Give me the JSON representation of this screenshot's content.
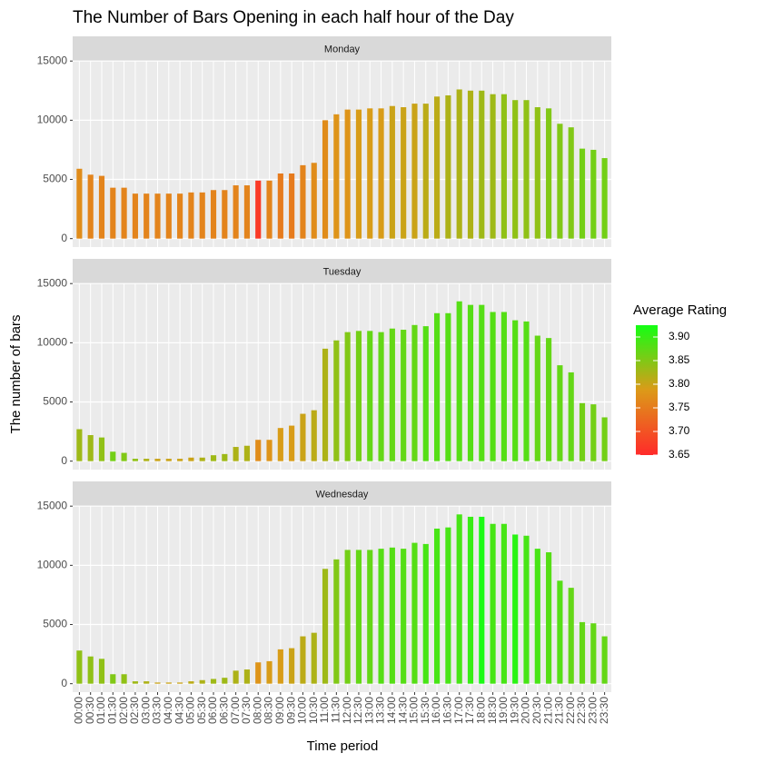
{
  "chart_data": {
    "type": "bar",
    "title": "The Number of Bars Opening in each half hour of the Day",
    "xlabel": "Time period",
    "ylabel": "The number of bars",
    "categories": [
      "00:00",
      "00:30",
      "01:00",
      "01:30",
      "02:00",
      "02:30",
      "03:00",
      "03:30",
      "04:00",
      "04:30",
      "05:00",
      "05:30",
      "06:00",
      "06:30",
      "07:00",
      "07:30",
      "08:00",
      "08:30",
      "09:00",
      "09:30",
      "10:00",
      "10:30",
      "11:00",
      "11:30",
      "12:00",
      "12:30",
      "13:00",
      "13:30",
      "14:00",
      "14:30",
      "15:00",
      "15:30",
      "16:00",
      "16:30",
      "17:00",
      "17:30",
      "18:00",
      "18:30",
      "19:00",
      "19:30",
      "20:00",
      "20:30",
      "21:00",
      "21:30",
      "22:00",
      "22:30",
      "23:00",
      "23:30"
    ],
    "facets": [
      {
        "name": "Monday",
        "values": [
          5900,
          5400,
          5300,
          4300,
          4300,
          3800,
          3800,
          3800,
          3800,
          3800,
          3900,
          3900,
          4100,
          4100,
          4500,
          4500,
          4900,
          4900,
          5500,
          5500,
          6200,
          6400,
          10000,
          10500,
          10900,
          10900,
          11000,
          11000,
          11200,
          11100,
          11400,
          11400,
          12000,
          12100,
          12600,
          12500,
          12500,
          12200,
          12200,
          11700,
          11700,
          11100,
          11000,
          9700,
          9400,
          7600,
          7500,
          6800
        ],
        "ratings": [
          3.77,
          3.76,
          3.76,
          3.76,
          3.76,
          3.76,
          3.76,
          3.76,
          3.76,
          3.76,
          3.76,
          3.76,
          3.76,
          3.76,
          3.76,
          3.76,
          3.67,
          3.76,
          3.75,
          3.75,
          3.76,
          3.77,
          3.77,
          3.78,
          3.78,
          3.79,
          3.79,
          3.79,
          3.8,
          3.8,
          3.8,
          3.81,
          3.81,
          3.82,
          3.82,
          3.82,
          3.83,
          3.83,
          3.84,
          3.84,
          3.84,
          3.84,
          3.85,
          3.85,
          3.85,
          3.86,
          3.86,
          3.86
        ]
      },
      {
        "name": "Tuesday",
        "values": [
          2700,
          2200,
          2000,
          800,
          700,
          200,
          200,
          200,
          200,
          200,
          300,
          300,
          500,
          600,
          1200,
          1300,
          1800,
          1800,
          2800,
          3000,
          4000,
          4300,
          9500,
          10200,
          10900,
          11000,
          11000,
          10900,
          11200,
          11100,
          11500,
          11400,
          12500,
          12500,
          13500,
          13200,
          13200,
          12600,
          12600,
          11900,
          11800,
          10600,
          10400,
          8100,
          7500,
          4900,
          4800,
          3700
        ],
        "ratings": [
          3.83,
          3.83,
          3.84,
          3.86,
          3.85,
          3.84,
          3.82,
          3.8,
          3.8,
          3.8,
          3.8,
          3.82,
          3.83,
          3.83,
          3.82,
          3.82,
          3.77,
          3.78,
          3.79,
          3.79,
          3.8,
          3.81,
          3.82,
          3.84,
          3.85,
          3.86,
          3.87,
          3.87,
          3.87,
          3.87,
          3.87,
          3.88,
          3.88,
          3.88,
          3.88,
          3.88,
          3.88,
          3.88,
          3.88,
          3.88,
          3.88,
          3.87,
          3.87,
          3.87,
          3.87,
          3.86,
          3.86,
          3.86
        ]
      },
      {
        "name": "Wednesday",
        "values": [
          2800,
          2300,
          2100,
          800,
          800,
          200,
          200,
          100,
          100,
          100,
          200,
          300,
          400,
          500,
          1100,
          1200,
          1800,
          1900,
          2900,
          3000,
          4000,
          4300,
          9700,
          10500,
          11300,
          11300,
          11300,
          11400,
          11500,
          11400,
          11900,
          11800,
          13100,
          13200,
          14300,
          14100,
          14100,
          13500,
          13500,
          12600,
          12500,
          11400,
          11100,
          8700,
          8100,
          5200,
          5100,
          4000
        ],
        "ratings": [
          3.84,
          3.84,
          3.84,
          3.85,
          3.84,
          3.83,
          3.82,
          3.8,
          3.8,
          3.8,
          3.81,
          3.82,
          3.83,
          3.83,
          3.82,
          3.82,
          3.78,
          3.79,
          3.79,
          3.8,
          3.81,
          3.82,
          3.83,
          3.85,
          3.86,
          3.87,
          3.87,
          3.88,
          3.88,
          3.88,
          3.88,
          3.89,
          3.89,
          3.89,
          3.89,
          3.9,
          3.92,
          3.89,
          3.89,
          3.91,
          3.89,
          3.89,
          3.88,
          3.88,
          3.87,
          3.87,
          3.87,
          3.87
        ]
      }
    ],
    "ylim": [
      -715,
      15015
    ],
    "yticks": [
      0,
      5000,
      10000,
      15000
    ],
    "grid": true,
    "colorbar": {
      "title": "Average Rating",
      "lim": [
        3.65,
        3.925
      ],
      "ticks": [
        3.65,
        {
          "value": 3.7,
          "label": "3.70"
        },
        3.75,
        {
          "value": 3.8,
          "label": "3.80"
        },
        3.85,
        {
          "value": 3.9,
          "label": "3.90"
        }
      ],
      "colors": [
        "#ff2a2a",
        "#dc9a18",
        "#14ff14"
      ]
    }
  }
}
